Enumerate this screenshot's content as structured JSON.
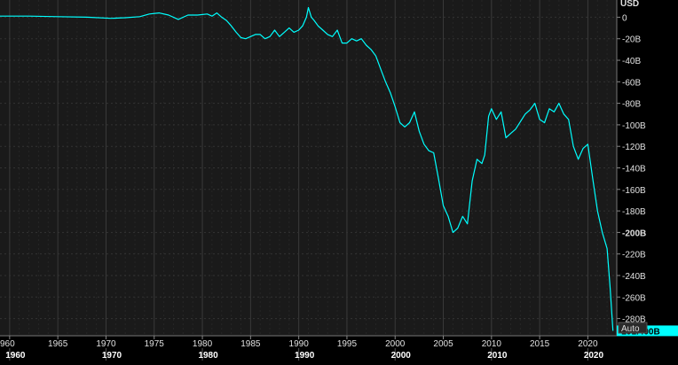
{
  "chart_data": {
    "type": "line",
    "title": "",
    "ylabel_unit": "USD",
    "xlim": [
      1959.0,
      2023.0
    ],
    "ylim": [
      -296,
      16
    ],
    "y_ticks": [
      0,
      -20,
      -40,
      -60,
      -80,
      -100,
      -120,
      -140,
      -160,
      -180,
      -200,
      -220,
      -240,
      -260,
      -280
    ],
    "y_tick_labels": [
      "0",
      "-20B",
      "-40B",
      "-60B",
      "-80B",
      "-100B",
      "-120B",
      "-140B",
      "-160B",
      "-180B",
      "-200B",
      "-220B",
      "-240B",
      "-260B",
      "-280B"
    ],
    "y_major_tick_label": "-200B",
    "x_minor_ticks": [
      1960,
      1965,
      1970,
      1975,
      1980,
      1985,
      1990,
      1995,
      2000,
      2005,
      2010,
      2015,
      2020
    ],
    "x_minor_tick_labels": [
      "960",
      "1965",
      "1970",
      "1975",
      "1980",
      "1985",
      "1990",
      "1995",
      "2000",
      "2005",
      "2010",
      "2015",
      "2020"
    ],
    "x_major_ticks": [
      1960,
      1970,
      1980,
      1990,
      2000,
      2010,
      2020
    ],
    "x_major_tick_labels": [
      "1960",
      "1970",
      "1980",
      "1990",
      "2000",
      "2010",
      "2020"
    ],
    "last_value_label": "-291.400B",
    "scale_label": "Auto",
    "grid": true,
    "colors": {
      "background": "#1a1a1a",
      "line": "#00ffff",
      "axis_text": "#e0e0e0",
      "badge_bg": "#00ffff",
      "badge_text": "#000000"
    },
    "series": [
      {
        "x": [
          1959.0,
          1962.0,
          1965.0,
          1968.0,
          1970.5,
          1972.0,
          1973.5,
          1974.5,
          1975.5,
          1976.5,
          1977.5,
          1978.5,
          1979.5,
          1980.5,
          1981.0,
          1981.5,
          1982.0,
          1982.5,
          1983.0,
          1983.5,
          1984.0,
          1984.5,
          1985.0,
          1985.5,
          1986.0,
          1986.5,
          1987.0,
          1987.5,
          1988.0,
          1988.5,
          1989.0,
          1989.5,
          1990.0,
          1990.4,
          1990.8,
          1991.0,
          1991.3,
          1991.6,
          1992.0,
          1992.5,
          1993.0,
          1993.5,
          1994.0,
          1994.5,
          1995.0,
          1995.5,
          1996.0,
          1996.5,
          1997.0,
          1997.5,
          1998.0,
          1998.5,
          1999.0,
          1999.5,
          2000.0,
          2000.5,
          2001.0,
          2001.5,
          2002.0,
          2002.5,
          2003.0,
          2003.5,
          2004.0,
          2004.5,
          2005.0,
          2005.5,
          2006.0,
          2006.5,
          2007.0,
          2007.5,
          2008.0,
          2008.5,
          2009.0,
          2009.3,
          2009.7,
          2010.0,
          2010.5,
          2011.0,
          2011.5,
          2012.0,
          2012.5,
          2013.0,
          2013.5,
          2014.0,
          2014.5,
          2015.0,
          2015.5,
          2016.0,
          2016.5,
          2017.0,
          2017.5,
          2018.0,
          2018.5,
          2019.0,
          2019.5,
          2020.0,
          2020.5,
          2021.0,
          2021.5,
          2022.0,
          2022.3,
          2022.6
        ],
        "y": [
          1,
          1,
          0.5,
          0,
          -1,
          -0.5,
          0.5,
          3,
          4,
          2,
          -2,
          2,
          2,
          3,
          1,
          4,
          0,
          -3,
          -8,
          -14,
          -19,
          -20,
          -18,
          -16,
          -16,
          -20,
          -18,
          -12,
          -18,
          -14,
          -10,
          -14,
          -12,
          -8,
          0,
          9,
          0,
          -3,
          -8,
          -12,
          -16,
          -18,
          -12,
          -24,
          -24,
          -20,
          -22,
          -20,
          -26,
          -30,
          -36,
          -48,
          -60,
          -70,
          -83,
          -98,
          -102,
          -98,
          -88,
          -106,
          -118,
          -124,
          -126,
          -150,
          -175,
          -185,
          -200,
          -196,
          -185,
          -192,
          -152,
          -132,
          -136,
          -128,
          -92,
          -85,
          -95,
          -88,
          -112,
          -108,
          -104,
          -97,
          -90,
          -86,
          -80,
          -95,
          -98,
          -85,
          -88,
          -80,
          -90,
          -95,
          -120,
          -132,
          -122,
          -118,
          -150,
          -180,
          -200,
          -215,
          -250,
          -291.4
        ]
      }
    ]
  }
}
